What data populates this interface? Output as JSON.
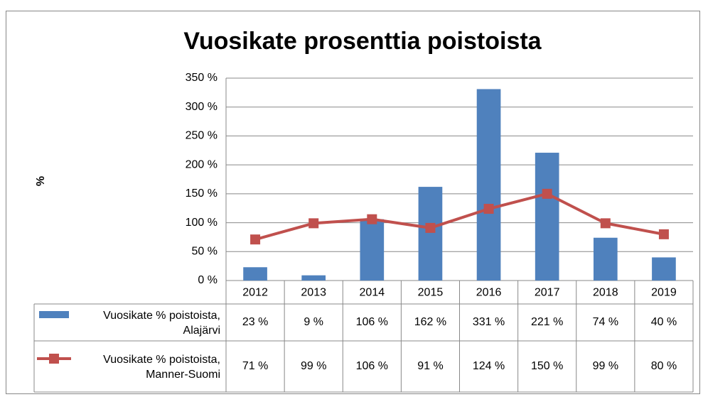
{
  "chart_data": {
    "type": "bar-line",
    "title": "Vuosikate prosenttia poistoista",
    "y_label": "%",
    "categories": [
      "2012",
      "2013",
      "2014",
      "2015",
      "2016",
      "2017",
      "2018",
      "2019"
    ],
    "series": [
      {
        "name": "Vuosikate % poistoista, Alajärvi",
        "type": "bar",
        "color": "#4f81bd",
        "values": [
          23,
          9,
          106,
          162,
          331,
          221,
          74,
          40
        ],
        "value_labels": [
          "23 %",
          "9 %",
          "106 %",
          "162 %",
          "331 %",
          "221 %",
          "74 %",
          "40 %"
        ]
      },
      {
        "name": "Vuosikate % poistoista, Manner-Suomi",
        "type": "line",
        "color": "#c0504d",
        "values": [
          71,
          99,
          106,
          91,
          124,
          150,
          99,
          80
        ],
        "value_labels": [
          "71 %",
          "99 %",
          "106 %",
          "91 %",
          "124 %",
          "150 %",
          "99 %",
          "80 %"
        ]
      }
    ],
    "ylim": [
      0,
      350
    ],
    "yticks": [
      {
        "value": 0,
        "label": "0 %"
      },
      {
        "value": 50,
        "label": "50 %"
      },
      {
        "value": 100,
        "label": "100 %"
      },
      {
        "value": 150,
        "label": "150 %"
      },
      {
        "value": 200,
        "label": "200 %"
      },
      {
        "value": 250,
        "label": "250 %"
      },
      {
        "value": 300,
        "label": "300 %"
      },
      {
        "value": 350,
        "label": "350 %"
      }
    ],
    "grid": true
  }
}
